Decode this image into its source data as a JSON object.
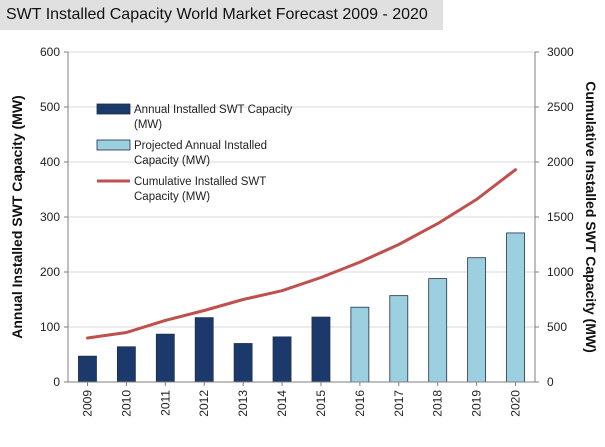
{
  "chart_data": {
    "type": "bar",
    "title": "SWT Installed Capacity World Market Forecast 2009 - 2020",
    "categories": [
      "2009",
      "2010",
      "2011",
      "2012",
      "2013",
      "2014",
      "2015",
      "2016",
      "2017",
      "2018",
      "2019",
      "2020"
    ],
    "ylabel": "Annual Installed SWT Capacity (MW)",
    "y2label": "Cumulative Installed SWT Capacity (MW)",
    "ylim": [
      0,
      600
    ],
    "y2lim": [
      0,
      3000
    ],
    "yticks": [
      "0",
      "100",
      "200",
      "300",
      "400",
      "500",
      "600"
    ],
    "y2ticks": [
      "0",
      "500",
      "1000",
      "1500",
      "2000",
      "2500",
      "3000"
    ],
    "grid": true,
    "legend_position": "upper-left",
    "series": [
      {
        "name": "Annual Installed SWT Capacity (MW)",
        "type": "bar",
        "axis": "left",
        "color": "#1b3a6b",
        "values": [
          47,
          64,
          87,
          117,
          70,
          82,
          118,
          null,
          null,
          null,
          null,
          null
        ]
      },
      {
        "name": "Projected Annual Installed Capacity (MW)",
        "type": "bar",
        "axis": "left",
        "color": "#9ccfe0",
        "values": [
          null,
          null,
          null,
          null,
          null,
          null,
          null,
          136,
          157,
          188,
          226,
          271
        ]
      },
      {
        "name": "Cumulative Installed SWT Capacity (MW)",
        "type": "line",
        "axis": "right",
        "color": "#c0504d",
        "values": [
          400,
          450,
          560,
          650,
          750,
          830,
          950,
          1090,
          1250,
          1440,
          1660,
          1930
        ]
      }
    ]
  }
}
